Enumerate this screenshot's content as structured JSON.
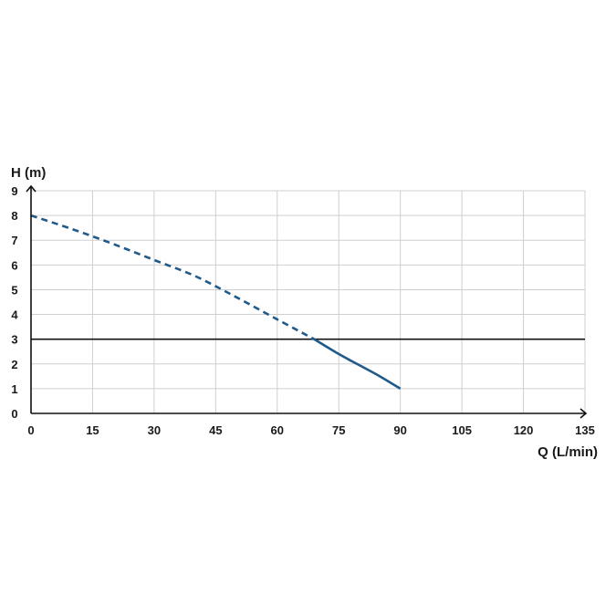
{
  "chart_data": {
    "type": "line",
    "xlabel": "Q (L/min)",
    "ylabel": "H (m)",
    "xlim": [
      0,
      135
    ],
    "ylim": [
      0,
      9
    ],
    "xticks": [
      0,
      15,
      30,
      45,
      60,
      75,
      90,
      105,
      120,
      135
    ],
    "yticks": [
      0,
      1,
      2,
      3,
      4,
      5,
      6,
      7,
      8,
      9
    ],
    "grid": true,
    "reference_line": {
      "y": 3,
      "color": "#111111"
    },
    "series": [
      {
        "style": "dashed",
        "color": "#1f5a8a",
        "x": [
          0,
          10,
          20,
          30,
          40,
          50,
          60,
          69
        ],
        "y": [
          8.0,
          7.45,
          6.85,
          6.2,
          5.55,
          4.7,
          3.8,
          3.0
        ]
      },
      {
        "style": "solid",
        "color": "#1f5a8a",
        "x": [
          69,
          75,
          80,
          85,
          90
        ],
        "y": [
          3.0,
          2.4,
          1.95,
          1.5,
          1.0
        ]
      }
    ]
  }
}
